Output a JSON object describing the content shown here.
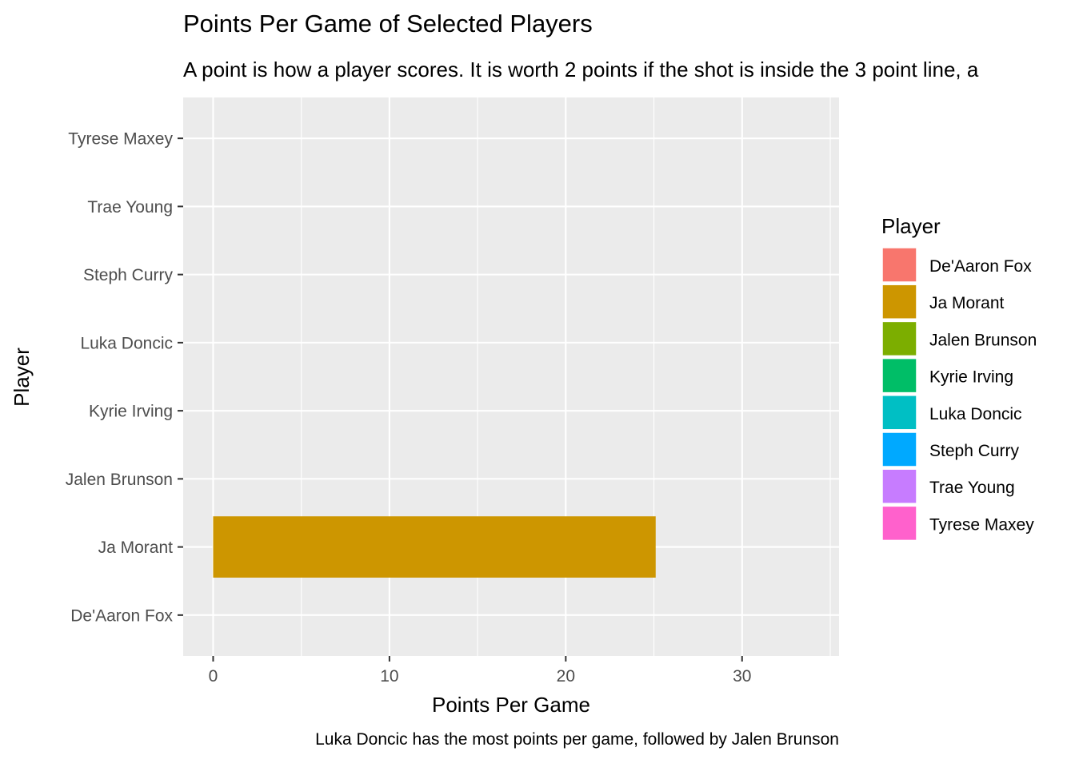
{
  "chart_data": {
    "type": "bar",
    "orientation": "horizontal",
    "title": "Points Per Game of Selected Players",
    "subtitle": "A point is how a player scores. It is worth 2 points if the shot is inside the 3 point line, a",
    "xlabel": "Points Per Game",
    "ylabel": "Player",
    "caption": "Luka Doncic has the most points per game, followed by Jalen Brunson",
    "xlim": [
      -1.7,
      35.5
    ],
    "xticks": [
      0,
      10,
      20,
      30
    ],
    "x_minor_ticks": [
      5,
      15,
      25,
      35
    ],
    "categories": [
      "De'Aaron Fox",
      "Ja Morant",
      "Jalen Brunson",
      "Kyrie Irving",
      "Luka Doncic",
      "Steph Curry",
      "Trae Young",
      "Tyrese Maxey"
    ],
    "values": [
      null,
      25.1,
      null,
      null,
      null,
      null,
      null,
      null
    ],
    "colors": [
      "#F8766D",
      "#CD9600",
      "#7CAE00",
      "#00BE67",
      "#00BFC4",
      "#00A9FF",
      "#C77CFF",
      "#FF61CC"
    ],
    "legend": {
      "title": "Player",
      "position": "right",
      "entries": [
        "De'Aaron Fox",
        "Ja Morant",
        "Jalen Brunson",
        "Kyrie Irving",
        "Luka Doncic",
        "Steph Curry",
        "Trae Young",
        "Tyrese Maxey"
      ]
    },
    "grid": true,
    "panel_background": "#EBEBEB"
  }
}
